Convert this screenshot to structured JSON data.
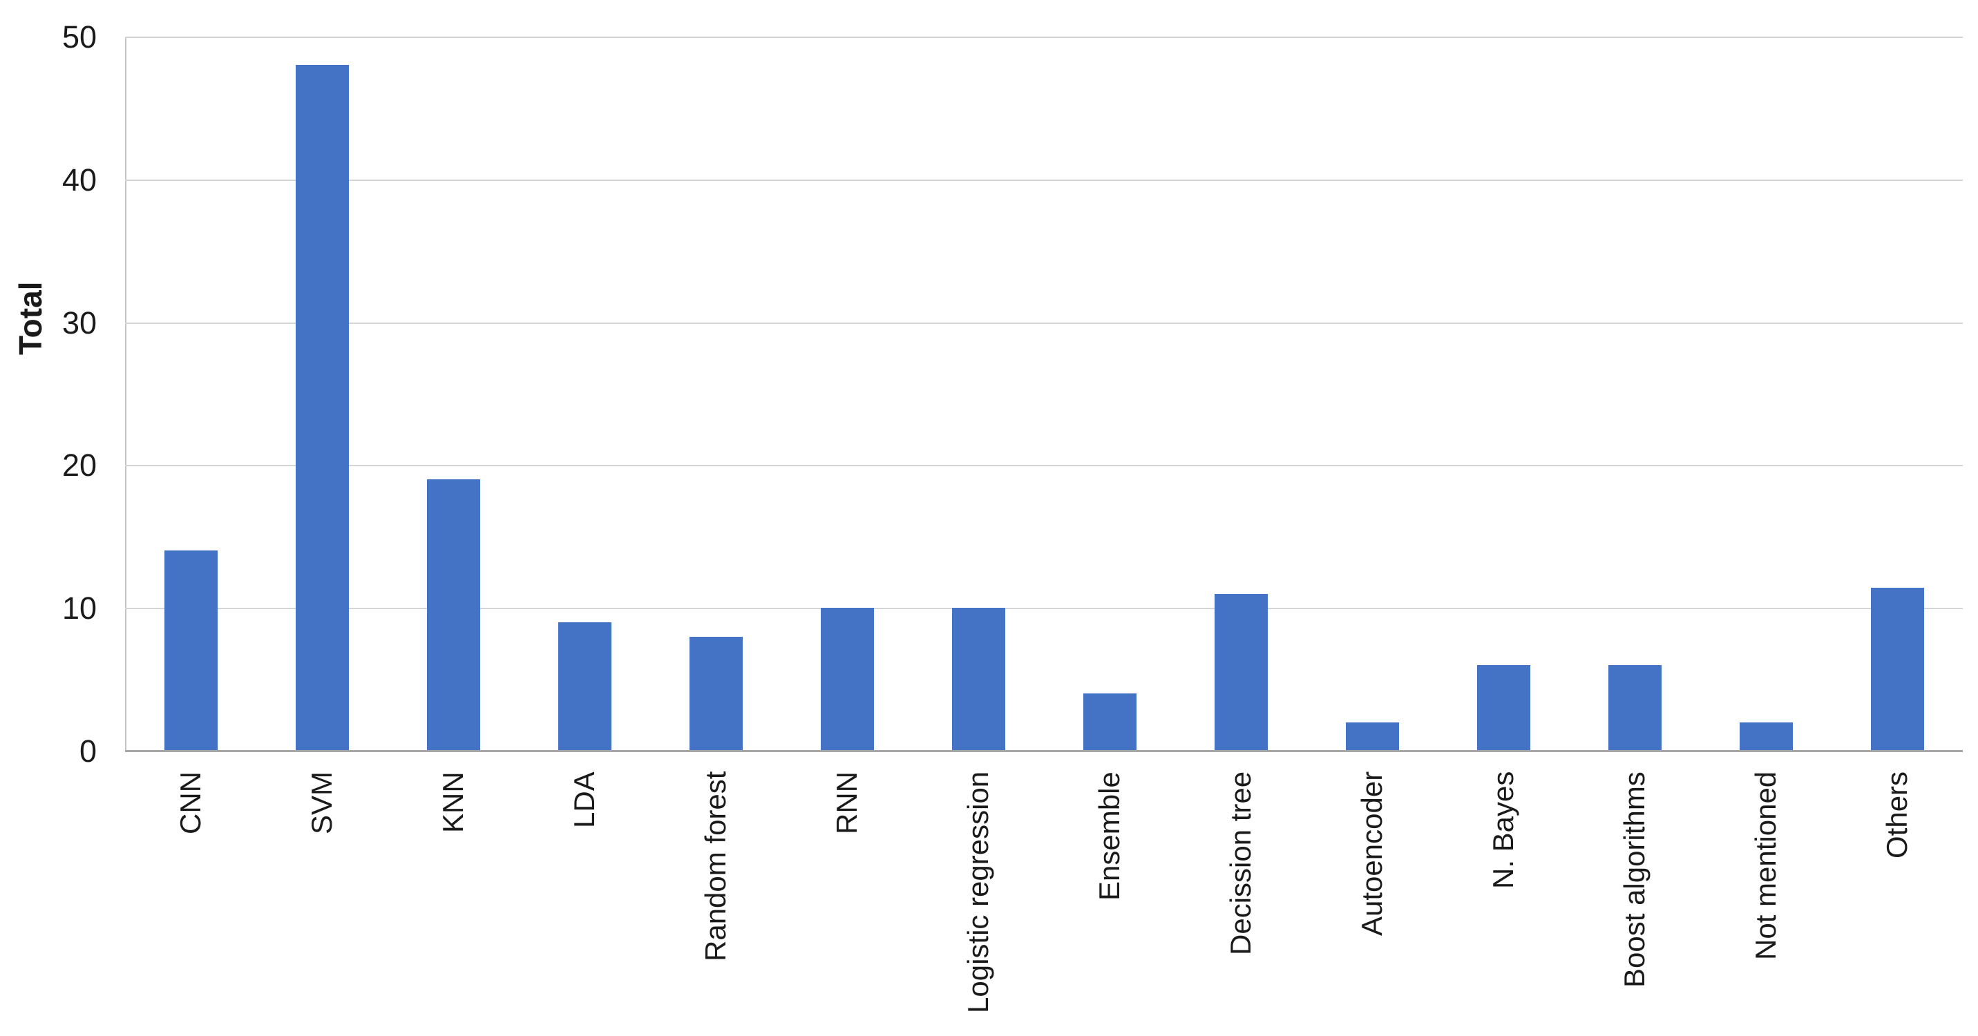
{
  "chart_data": {
    "type": "bar",
    "title": "",
    "xlabel": "",
    "ylabel": "Total",
    "categories": [
      "CNN",
      "SVM",
      "KNN",
      "LDA",
      "Random forest",
      "RNN",
      "Logistic regression",
      "Ensemble",
      "Decission tree",
      "Autoencoder",
      "N. Bayes",
      "Boost algorithms",
      "Not mentioned",
      "Others"
    ],
    "values": [
      14,
      48,
      19,
      9,
      8,
      10,
      10,
      4,
      11,
      2,
      6,
      6,
      2,
      11.4
    ],
    "ylim": [
      0,
      50
    ],
    "yticks": [
      0,
      10,
      20,
      30,
      40,
      50
    ],
    "grid": true,
    "legend": "none",
    "bar_color": "#4472C4",
    "gridline_color": "#D5D5D5",
    "baseline_color": "#A6A6A6",
    "plot_border_color": "#C4C4C4",
    "text_color": "#1A1A1A",
    "background": "#FFFFFF"
  }
}
